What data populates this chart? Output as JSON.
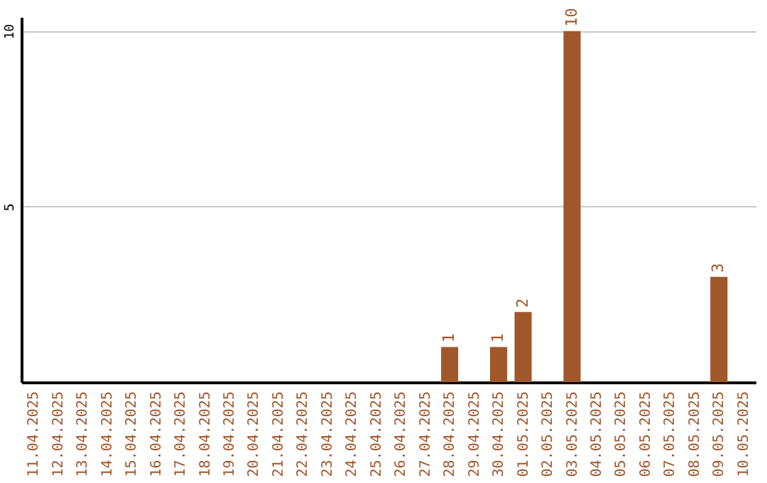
{
  "chart_data": {
    "type": "bar",
    "categories": [
      "11.04.2025",
      "12.04.2025",
      "13.04.2025",
      "14.04.2025",
      "15.04.2025",
      "16.04.2025",
      "17.04.2025",
      "18.04.2025",
      "19.04.2025",
      "20.04.2025",
      "21.04.2025",
      "22.04.2025",
      "23.04.2025",
      "24.04.2025",
      "25.04.2025",
      "26.04.2025",
      "27.04.2025",
      "28.04.2025",
      "29.04.2025",
      "30.04.2025",
      "01.05.2025",
      "02.05.2025",
      "03.05.2025",
      "04.05.2025",
      "05.05.2025",
      "06.05.2025",
      "07.05.2025",
      "08.05.2025",
      "09.05.2025",
      "10.05.2025"
    ],
    "values": [
      0,
      0,
      0,
      0,
      0,
      0,
      0,
      0,
      0,
      0,
      0,
      0,
      0,
      0,
      0,
      0,
      0,
      1,
      0,
      1,
      2,
      0,
      10,
      0,
      0,
      0,
      0,
      0,
      3,
      0
    ],
    "value_labels": [
      null,
      null,
      null,
      null,
      null,
      null,
      null,
      null,
      null,
      null,
      null,
      null,
      null,
      null,
      null,
      null,
      null,
      "1",
      null,
      "1",
      "2",
      null,
      "10",
      null,
      null,
      null,
      null,
      null,
      "3",
      null
    ],
    "color": "#a0572a",
    "ylim": [
      0,
      10.4
    ],
    "yticks": [
      5,
      10
    ],
    "grid": "y"
  }
}
